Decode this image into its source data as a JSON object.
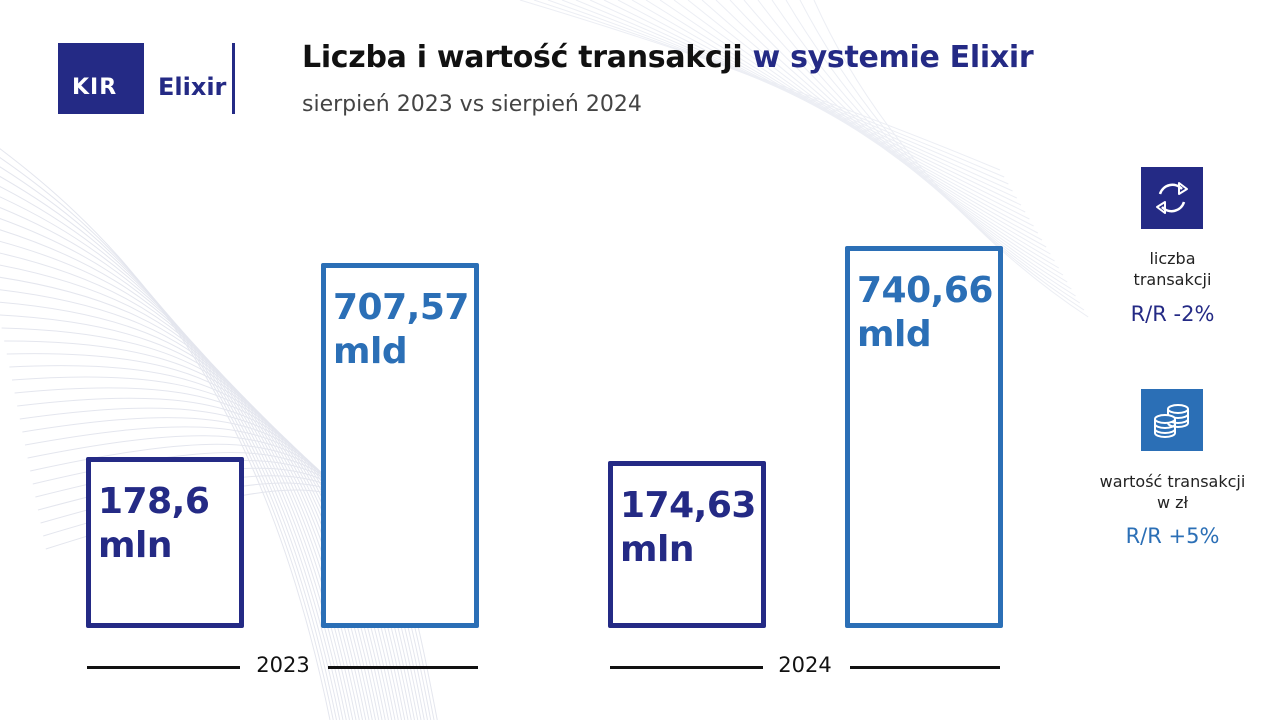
{
  "header": {
    "logo_left": "KIR",
    "logo_right": "Elixir",
    "title_part1": "Liczba i wartość transakcji",
    "title_part2": "w systemie Elixir",
    "subtitle": "sierpień 2023 vs sierpień 2024"
  },
  "chart_data": {
    "type": "bar",
    "categories": [
      "2023",
      "2024"
    ],
    "series": [
      {
        "name": "liczba transakcji",
        "values": [
          178.6,
          174.63
        ],
        "labels": [
          "178,6",
          "174,63"
        ],
        "unit": "mln"
      },
      {
        "name": "wartość transakcji w zł",
        "values": [
          707.57,
          740.66
        ],
        "labels": [
          "707,57",
          "740,66"
        ],
        "unit": "mld"
      }
    ]
  },
  "legend": {
    "count": {
      "line1": "liczba",
      "line2": "transakcji",
      "change": "R/R -2%",
      "icon": "refresh-arrows-icon"
    },
    "value": {
      "line1": "wartość transakcji",
      "line2": "w zł",
      "change": "R/R +5%",
      "icon": "coin-stack-icon"
    }
  },
  "colors": {
    "navy": "#242a85",
    "blue": "#2b6fb6"
  }
}
